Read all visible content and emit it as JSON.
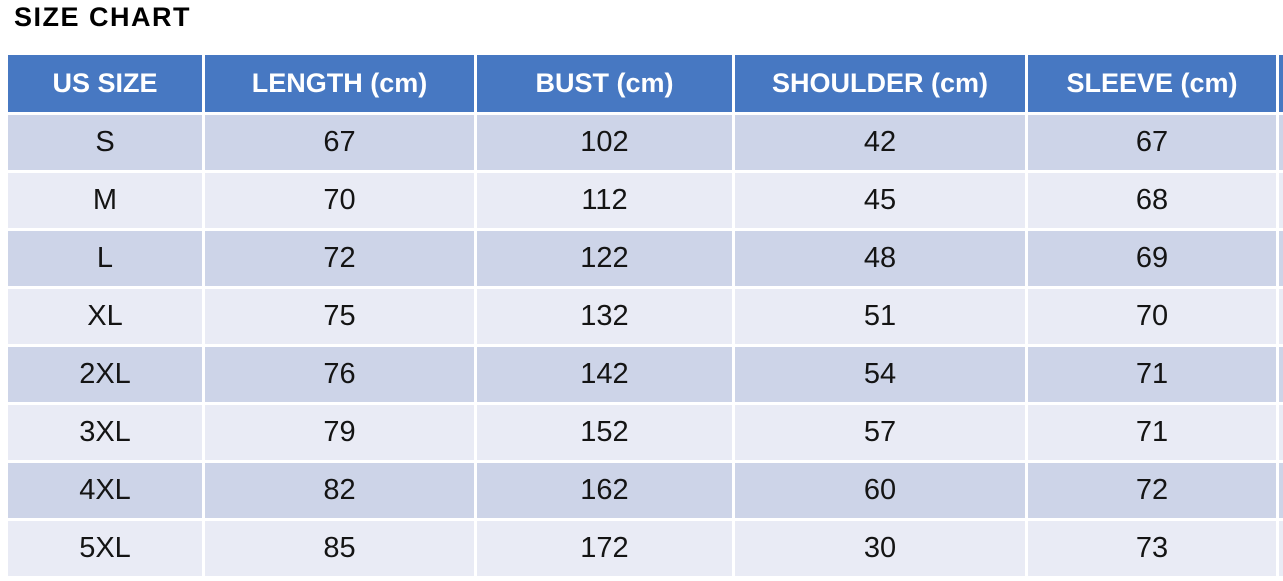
{
  "page_title": "SIZE CHART",
  "colors": {
    "header_bg": "#4778C2",
    "header_text": "#FFFFFF",
    "row_odd_bg": "#CDD4E8",
    "row_even_bg": "#E9EBF5",
    "cell_text": "#141414",
    "title_text": "#000000"
  },
  "chart_data": {
    "type": "table",
    "title": "SIZE CHART",
    "columns": [
      "US SIZE",
      "LENGTH (cm)",
      "BUST (cm)",
      "SHOULDER (cm)",
      "SLEEVE (cm)"
    ],
    "rows": [
      [
        "S",
        "67",
        "102",
        "42",
        "67"
      ],
      [
        "M",
        "70",
        "112",
        "45",
        "68"
      ],
      [
        "L",
        "72",
        "122",
        "48",
        "69"
      ],
      [
        "XL",
        "75",
        "132",
        "51",
        "70"
      ],
      [
        "2XL",
        "76",
        "142",
        "54",
        "71"
      ],
      [
        "3XL",
        "79",
        "152",
        "57",
        "71"
      ],
      [
        "4XL",
        "82",
        "162",
        "60",
        "72"
      ],
      [
        "5XL",
        "85",
        "172",
        "30",
        "73"
      ]
    ]
  }
}
